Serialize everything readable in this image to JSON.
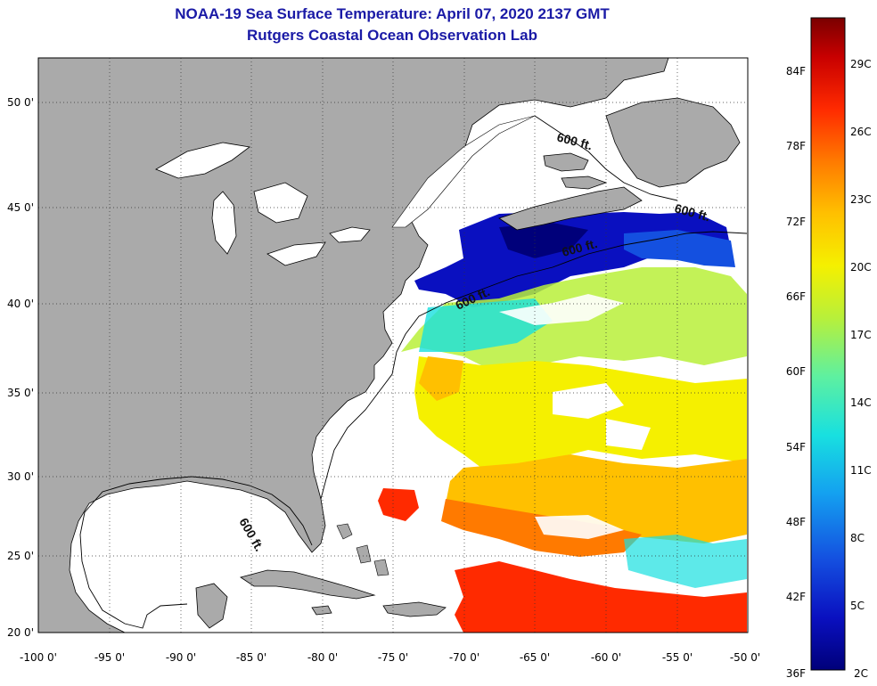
{
  "title": {
    "line1": "NOAA-19 Sea Surface Temperature:  April 07, 2020 2137 GMT",
    "line2": "Rutgers Coastal Ocean Observation Lab"
  },
  "map": {
    "lon_range": [
      -100,
      -50
    ],
    "lat_range": [
      20,
      52.5
    ],
    "lat_labels": [
      "50 0'",
      "45 0'",
      "40 0'",
      "35 0'",
      "30 0'",
      "25 0'",
      "20 0'"
    ],
    "lon_labels": [
      "-100 0'",
      "-95 0'",
      "-90 0'",
      "-85 0'",
      "-80 0'",
      "-75 0'",
      "-70 0'",
      "-65 0'",
      "-60 0'",
      "-55 0'",
      "-50 0'"
    ],
    "depth_contour_label": "600 ft.",
    "land_color": "#aaaaaa",
    "cloud_color": "#ffffff"
  },
  "colorbar": {
    "f_labels": [
      "84F",
      "78F",
      "72F",
      "66F",
      "60F",
      "54F",
      "48F",
      "42F",
      "36F"
    ],
    "c_labels": [
      "29C",
      "26C",
      "23C",
      "20C",
      "17C",
      "14C",
      "11C",
      "8C",
      "5C",
      "2C"
    ],
    "colors": [
      "#7a0000",
      "#c80000",
      "#ff2a00",
      "#ff7a00",
      "#ffc000",
      "#f5f000",
      "#b8f03a",
      "#5ef0a0",
      "#18e0e0",
      "#14a0f0",
      "#1450e0",
      "#0a10c0",
      "#00007a"
    ]
  }
}
